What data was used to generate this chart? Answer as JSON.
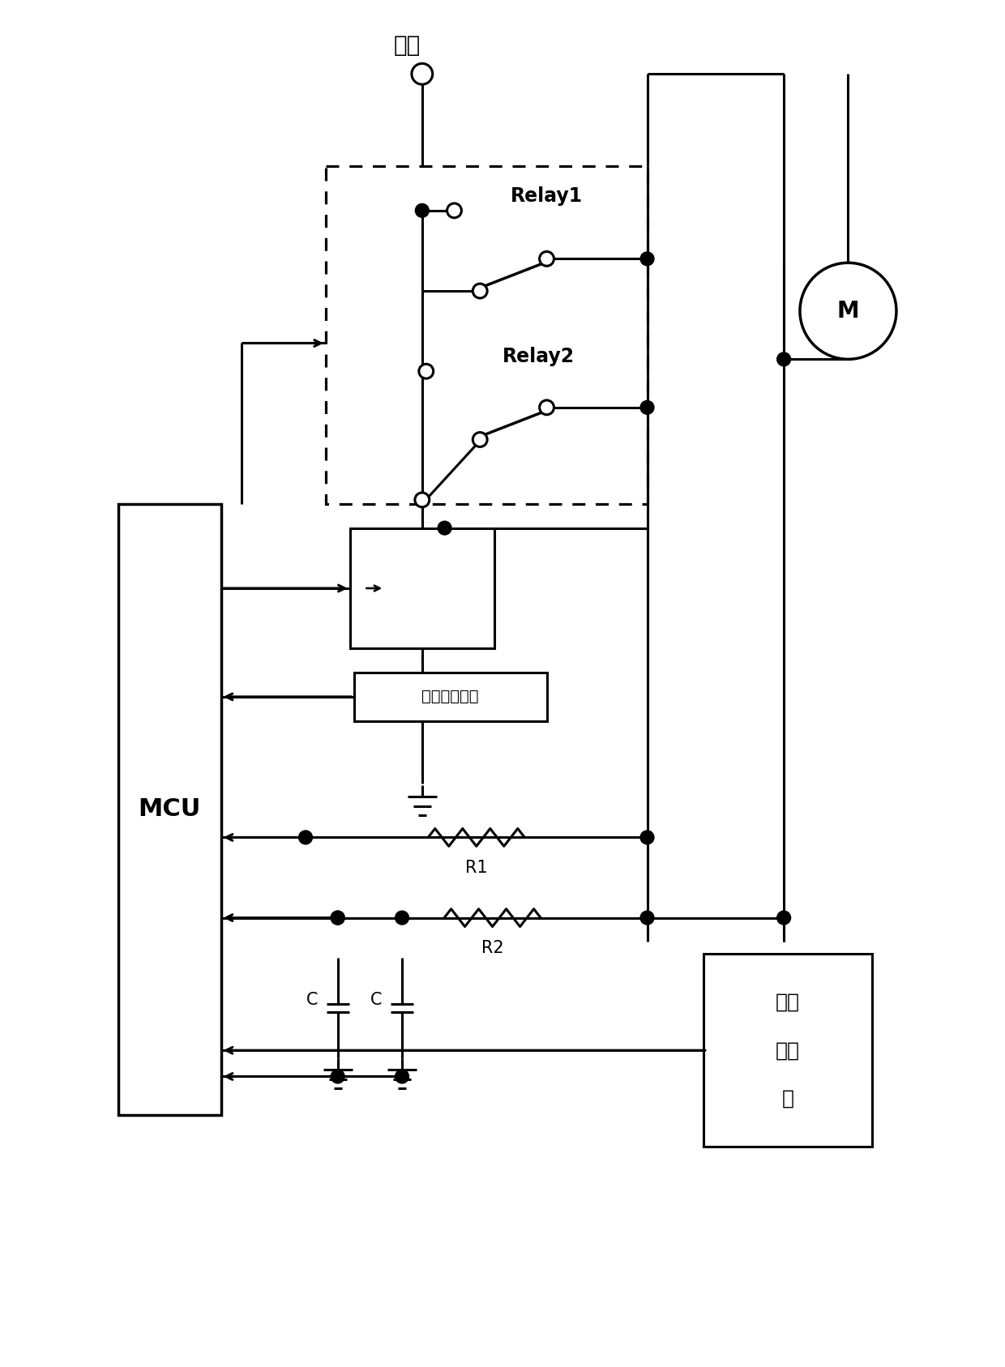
{
  "bg_color": "#ffffff",
  "line_color": "#000000",
  "fig_width": 12.4,
  "fig_height": 16.87,
  "power_label": "电源",
  "relay1_label": "Relay1",
  "relay2_label": "Relay2",
  "motor_label": "M",
  "current_sample_label": "电流采样电路",
  "r1_label": "R1",
  "r2_label": "R2",
  "c_label": "C",
  "mcu_label": "MCU",
  "pos_line1": "位置",
  "pos_line2": "传感",
  "pos_line3": "器",
  "lw": 2.2,
  "dot_r": 0.085,
  "open_r": 0.09
}
